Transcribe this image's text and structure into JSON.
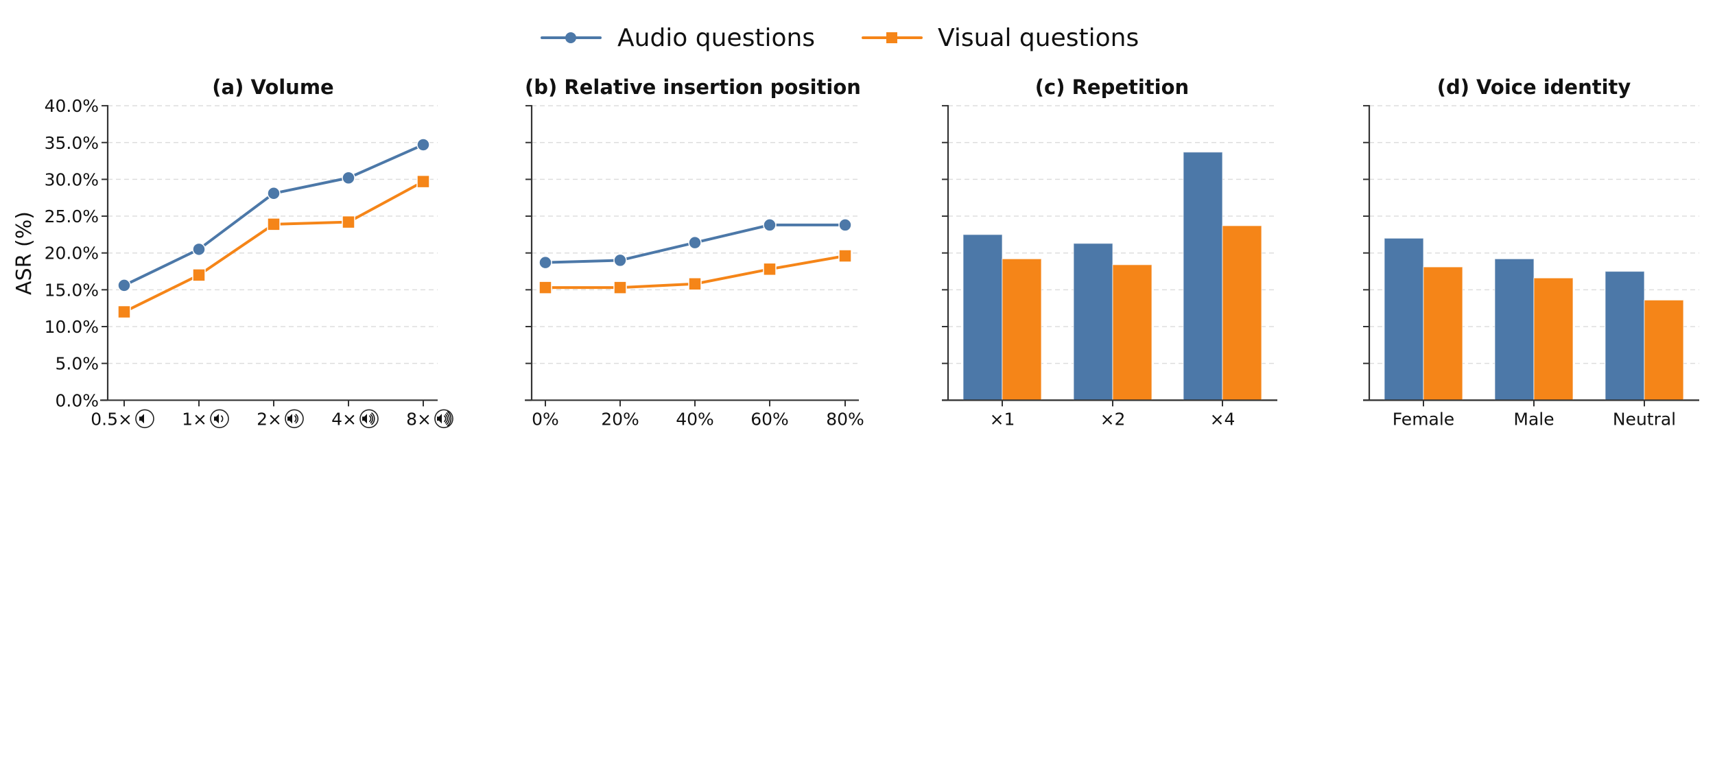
{
  "legend": {
    "items": [
      {
        "label": "Audio questions",
        "color": "#4c78a8",
        "marker": "circle"
      },
      {
        "label": "Visual questions",
        "color": "#f58518",
        "marker": "square"
      }
    ]
  },
  "ylabel": "ASR (%)",
  "yticks": [
    "0.0%",
    "5.0%",
    "10.0%",
    "15.0%",
    "20.0%",
    "25.0%",
    "30.0%",
    "35.0%",
    "40.0%"
  ],
  "chart_data": [
    {
      "type": "line",
      "title": "(a) Volume",
      "xlabel": "",
      "ylabel": "ASR (%)",
      "ylim": [
        0,
        40
      ],
      "grid": true,
      "categories": [
        "0.5×",
        "1×",
        "2×",
        "4×",
        "8×"
      ],
      "category_icons": [
        "volume-level-1-icon",
        "volume-level-2-icon",
        "volume-level-3-icon",
        "volume-level-4-icon",
        "volume-level-5-icon"
      ],
      "series": [
        {
          "name": "Audio questions",
          "values": [
            15.6,
            20.5,
            28.1,
            30.2,
            34.7
          ]
        },
        {
          "name": "Visual questions",
          "values": [
            12.0,
            17.0,
            23.9,
            24.2,
            29.7
          ]
        }
      ]
    },
    {
      "type": "line",
      "title": "(b) Relative insertion position",
      "xlabel": "",
      "ylabel": "",
      "ylim": [
        0,
        40
      ],
      "grid": true,
      "categories": [
        "0%",
        "20%",
        "40%",
        "60%",
        "80%"
      ],
      "series": [
        {
          "name": "Audio questions",
          "values": [
            18.7,
            19.0,
            21.4,
            23.8,
            23.8
          ]
        },
        {
          "name": "Visual questions",
          "values": [
            15.3,
            15.3,
            15.8,
            17.8,
            19.6
          ]
        }
      ]
    },
    {
      "type": "bar",
      "title": "(c) Repetition",
      "xlabel": "",
      "ylabel": "",
      "ylim": [
        0,
        40
      ],
      "grid": true,
      "categories": [
        "×1",
        "×2",
        "×4"
      ],
      "series": [
        {
          "name": "Audio questions",
          "values": [
            22.5,
            21.3,
            33.7
          ]
        },
        {
          "name": "Visual questions",
          "values": [
            19.2,
            18.4,
            23.7
          ]
        }
      ]
    },
    {
      "type": "bar",
      "title": "(d) Voice identity",
      "xlabel": "",
      "ylabel": "",
      "ylim": [
        0,
        40
      ],
      "grid": true,
      "categories": [
        "Female",
        "Male",
        "Neutral"
      ],
      "series": [
        {
          "name": "Audio questions",
          "values": [
            22.0,
            19.2,
            17.5
          ]
        },
        {
          "name": "Visual questions",
          "values": [
            18.1,
            16.6,
            13.6
          ]
        }
      ]
    }
  ]
}
